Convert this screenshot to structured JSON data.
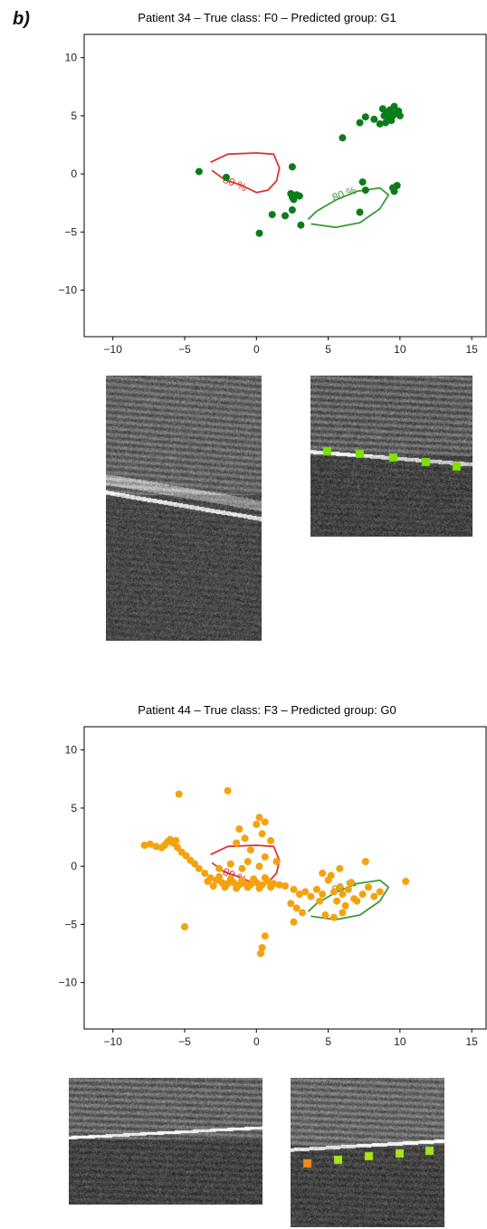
{
  "panel_label": "b)",
  "chart_data": [
    {
      "type": "scatter",
      "title": "Patient 34 – True class: F0 – Predicted group: G1",
      "xlim": [
        -12,
        16
      ],
      "ylim": [
        -14,
        12
      ],
      "xticks": [
        -10,
        -5,
        0,
        5,
        10,
        15
      ],
      "yticks": [
        10,
        5,
        0,
        -5,
        -10
      ],
      "tick_labels_x": [
        "−10",
        "−5",
        "0",
        "5",
        "10",
        "15"
      ],
      "tick_labels_y": [
        "10",
        "5",
        "0",
        "−5",
        "−10"
      ],
      "point_color": "#0a7d1a",
      "points": [
        [
          -4.0,
          0.2
        ],
        [
          -2.1,
          -0.3
        ],
        [
          2.5,
          0.6
        ],
        [
          2.4,
          -1.7
        ],
        [
          2.5,
          -2.0
        ],
        [
          2.8,
          -1.8
        ],
        [
          3.0,
          -1.9
        ],
        [
          2.6,
          -2.2
        ],
        [
          1.1,
          -3.5
        ],
        [
          2.0,
          -3.6
        ],
        [
          2.5,
          -3.1
        ],
        [
          3.1,
          -4.4
        ],
        [
          0.2,
          -5.1
        ],
        [
          6.0,
          3.1
        ],
        [
          7.2,
          4.4
        ],
        [
          7.6,
          4.9
        ],
        [
          8.2,
          4.7
        ],
        [
          8.6,
          4.3
        ],
        [
          8.9,
          5.0
        ],
        [
          9.1,
          5.3
        ],
        [
          9.3,
          5.5
        ],
        [
          9.5,
          5.0
        ],
        [
          9.7,
          5.2
        ],
        [
          9.9,
          5.4
        ],
        [
          9.2,
          4.8
        ],
        [
          9.6,
          5.8
        ],
        [
          8.8,
          5.6
        ],
        [
          9.4,
          4.6
        ],
        [
          10.0,
          5.0
        ],
        [
          9.0,
          4.4
        ],
        [
          7.2,
          -3.3
        ],
        [
          7.4,
          -0.7
        ],
        [
          7.6,
          -1.4
        ],
        [
          9.6,
          -1.5
        ],
        [
          9.8,
          -1.0
        ],
        [
          9.5,
          -1.2
        ]
      ],
      "contours": [
        {
          "label": "80 %",
          "color": "#e03030",
          "path": [
            [
              -3.2,
              1.0
            ],
            [
              -2.0,
              1.7
            ],
            [
              0.0,
              1.8
            ],
            [
              1.2,
              1.7
            ],
            [
              1.6,
              0.5
            ],
            [
              1.4,
              -0.6
            ],
            [
              0.8,
              -1.4
            ],
            [
              0.0,
              -1.6
            ],
            [
              -1.0,
              -1.0
            ],
            [
              -2.2,
              -0.5
            ],
            [
              -3.1,
              0.3
            ]
          ],
          "label_at": [
            -1.6,
            -1.1
          ],
          "label_rot": 22
        },
        {
          "label": "80 %",
          "color": "#3a9a3a",
          "path": [
            [
              3.8,
              -4.3
            ],
            [
              5.5,
              -4.6
            ],
            [
              7.2,
              -4.2
            ],
            [
              8.6,
              -3.0
            ],
            [
              9.2,
              -1.8
            ],
            [
              8.6,
              -1.2
            ],
            [
              7.0,
              -1.5
            ],
            [
              5.6,
              -2.2
            ],
            [
              4.2,
              -3.2
            ],
            [
              3.6,
              -3.9
            ]
          ],
          "label_at": [
            6.2,
            -2.0
          ],
          "label_rot": -20
        }
      ]
    },
    {
      "type": "scatter",
      "title": "Patient 44 – True class: F3 – Predicted group: G0",
      "xlim": [
        -12,
        16
      ],
      "ylim": [
        -14,
        12
      ],
      "xticks": [
        -10,
        -5,
        0,
        5,
        10,
        15
      ],
      "yticks": [
        10,
        5,
        0,
        -5,
        -10
      ],
      "tick_labels_x": [
        "−10",
        "−5",
        "0",
        "5",
        "10",
        "15"
      ],
      "tick_labels_y": [
        "10",
        "5",
        "0",
        "−5",
        "−10"
      ],
      "point_color": "#f5a20f",
      "points": [
        [
          -7.8,
          1.8
        ],
        [
          -7.4,
          1.9
        ],
        [
          -7.0,
          1.7
        ],
        [
          -6.6,
          1.6
        ],
        [
          -6.2,
          2.1
        ],
        [
          -6.0,
          2.3
        ],
        [
          -5.8,
          2.0
        ],
        [
          -5.5,
          1.6
        ],
        [
          -5.2,
          1.2
        ],
        [
          -4.9,
          0.9
        ],
        [
          -6.4,
          1.8
        ],
        [
          -5.6,
          2.2
        ],
        [
          -4.6,
          0.5
        ],
        [
          -4.3,
          0.2
        ],
        [
          -4.0,
          -0.2
        ],
        [
          -3.6,
          -0.6
        ],
        [
          -3.2,
          -1.0
        ],
        [
          -2.8,
          -1.2
        ],
        [
          -2.4,
          -1.4
        ],
        [
          -2.0,
          -1.5
        ],
        [
          -1.6,
          -1.4
        ],
        [
          -1.2,
          -1.6
        ],
        [
          -0.8,
          -1.5
        ],
        [
          -0.4,
          -1.6
        ],
        [
          0.0,
          -1.4
        ],
        [
          0.4,
          -1.6
        ],
        [
          0.8,
          -1.3
        ],
        [
          1.2,
          -1.5
        ],
        [
          1.6,
          -1.6
        ],
        [
          2.0,
          -1.7
        ],
        [
          -3.4,
          -1.3
        ],
        [
          -2.6,
          -0.9
        ],
        [
          -1.8,
          -1.1
        ],
        [
          -1.0,
          -1.2
        ],
        [
          -0.2,
          -1.1
        ],
        [
          0.6,
          -1.0
        ],
        [
          -3.0,
          -1.7
        ],
        [
          -2.2,
          -1.8
        ],
        [
          -1.4,
          -1.9
        ],
        [
          -0.6,
          -1.8
        ],
        [
          0.2,
          -1.9
        ],
        [
          1.0,
          -1.8
        ],
        [
          -2.0,
          6.5
        ],
        [
          -5.4,
          6.2
        ],
        [
          0.2,
          4.2
        ],
        [
          0.0,
          3.6
        ],
        [
          0.6,
          3.8
        ],
        [
          -1.2,
          3.2
        ],
        [
          -1.4,
          2.0
        ],
        [
          -0.8,
          2.4
        ],
        [
          0.4,
          2.8
        ],
        [
          1.0,
          2.2
        ],
        [
          -0.4,
          1.4
        ],
        [
          0.6,
          0.8
        ],
        [
          -1.8,
          0.2
        ],
        [
          -0.6,
          0.4
        ],
        [
          0.2,
          0.0
        ],
        [
          1.4,
          0.4
        ],
        [
          -2.6,
          -0.2
        ],
        [
          2.6,
          -2.0
        ],
        [
          3.0,
          -2.4
        ],
        [
          3.4,
          -2.2
        ],
        [
          3.8,
          -2.6
        ],
        [
          2.4,
          -3.2
        ],
        [
          2.8,
          -3.6
        ],
        [
          3.2,
          -4.0
        ],
        [
          2.6,
          -4.8
        ],
        [
          4.2,
          -2.0
        ],
        [
          4.4,
          -3.0
        ],
        [
          4.6,
          -2.4
        ],
        [
          5.0,
          -1.2
        ],
        [
          5.2,
          -0.8
        ],
        [
          5.4,
          -2.2
        ],
        [
          5.6,
          -3.0
        ],
        [
          5.8,
          -1.8
        ],
        [
          6.0,
          -2.4
        ],
        [
          6.2,
          -3.4
        ],
        [
          6.4,
          -2.0
        ],
        [
          6.6,
          -1.4
        ],
        [
          6.8,
          -2.8
        ],
        [
          7.0,
          -3.0
        ],
        [
          7.4,
          -2.4
        ],
        [
          7.8,
          -1.8
        ],
        [
          8.2,
          -2.6
        ],
        [
          8.6,
          -2.2
        ],
        [
          10.4,
          -1.3
        ],
        [
          7.6,
          0.4
        ],
        [
          4.6,
          -0.6
        ],
        [
          5.8,
          -0.2
        ],
        [
          4.8,
          -4.2
        ],
        [
          5.4,
          -4.4
        ],
        [
          6.0,
          -4.0
        ],
        [
          0.6,
          -6.0
        ],
        [
          0.4,
          -7.0
        ],
        [
          0.3,
          -7.5
        ],
        [
          -5.0,
          -5.2
        ],
        [
          -1.0,
          -0.2
        ]
      ],
      "contours": [
        {
          "label": "80 %",
          "color": "#e03030",
          "path": [
            [
              -3.2,
              1.0
            ],
            [
              -2.0,
              1.7
            ],
            [
              0.0,
              1.8
            ],
            [
              1.2,
              1.7
            ],
            [
              1.6,
              0.5
            ],
            [
              1.4,
              -0.6
            ],
            [
              0.8,
              -1.4
            ],
            [
              0.0,
              -1.6
            ],
            [
              -1.0,
              -1.0
            ],
            [
              -2.2,
              -0.5
            ],
            [
              -3.1,
              0.3
            ]
          ],
          "label_at": [
            -1.6,
            -1.1
          ],
          "label_rot": 22
        },
        {
          "label": "80 %",
          "color": "#3a9a3a",
          "path": [
            [
              3.8,
              -4.3
            ],
            [
              5.5,
              -4.6
            ],
            [
              7.2,
              -4.2
            ],
            [
              8.6,
              -3.0
            ],
            [
              9.2,
              -1.8
            ],
            [
              8.6,
              -1.2
            ],
            [
              7.0,
              -1.5
            ],
            [
              5.6,
              -2.2
            ],
            [
              4.2,
              -3.2
            ],
            [
              3.6,
              -3.9
            ]
          ],
          "label_at": [
            6.2,
            -2.0
          ],
          "label_rot": -20
        }
      ]
    }
  ],
  "ultrasound_images": [
    {
      "name": "us-image-p34-left",
      "markers": []
    },
    {
      "name": "us-image-p34-right",
      "marker_color": "#7fe000",
      "markers_count": 5
    },
    {
      "name": "us-image-p44-left",
      "markers": []
    },
    {
      "name": "us-image-p44-right",
      "marker_colors": [
        "#f08c1a",
        "#a6e61a",
        "#a6e61a",
        "#a6e61a",
        "#a6e61a"
      ]
    }
  ]
}
